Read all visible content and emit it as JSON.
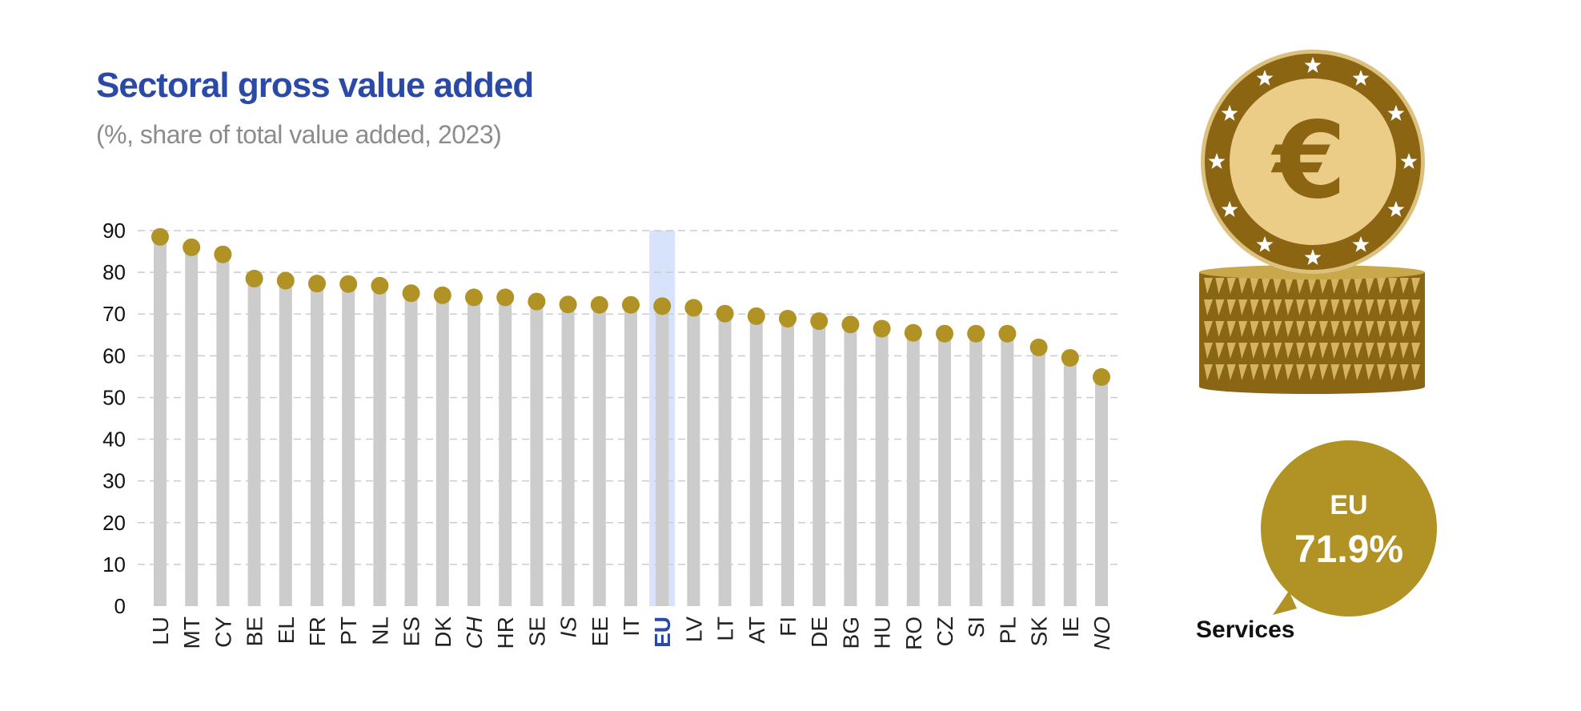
{
  "header": {
    "title": "Sectoral gross value added",
    "subtitle": "(%, share of total value added, 2023)"
  },
  "colors": {
    "title": "#2b49a6",
    "bar": "#cccccc",
    "marker": "#b09225",
    "highlight": "#d6e3fb",
    "gridline": "#cccccc"
  },
  "chart_data": {
    "type": "bar",
    "ylim": [
      0,
      90
    ],
    "yticks": [
      0,
      10,
      20,
      30,
      40,
      50,
      60,
      70,
      80,
      90
    ],
    "grid": true,
    "highlight_category": "EU",
    "italic_categories": [
      "CH",
      "IS",
      "NO"
    ],
    "categories": [
      "LU",
      "MT",
      "CY",
      "BE",
      "EL",
      "FR",
      "PT",
      "NL",
      "ES",
      "DK",
      "CH",
      "HR",
      "SE",
      "IS",
      "EE",
      "IT",
      "EU",
      "LV",
      "LT",
      "AT",
      "FI",
      "DE",
      "BG",
      "HU",
      "RO",
      "CZ",
      "SI",
      "PL",
      "SK",
      "IE",
      "NO"
    ],
    "values": [
      88.5,
      86,
      84.3,
      78.5,
      78,
      77.3,
      77.2,
      76.8,
      75,
      74.5,
      74,
      74,
      73,
      72.3,
      72.2,
      72.2,
      71.9,
      71.5,
      70.1,
      69.5,
      68.9,
      68.3,
      67.5,
      66.5,
      65.5,
      65.3,
      65.3,
      65.3,
      62,
      59.5,
      54.9
    ]
  },
  "callout": {
    "label": "EU",
    "value": "71.9%",
    "caption": "Services"
  },
  "icons": {
    "coin": "euro-coin-stack-icon",
    "symbol": "€"
  }
}
